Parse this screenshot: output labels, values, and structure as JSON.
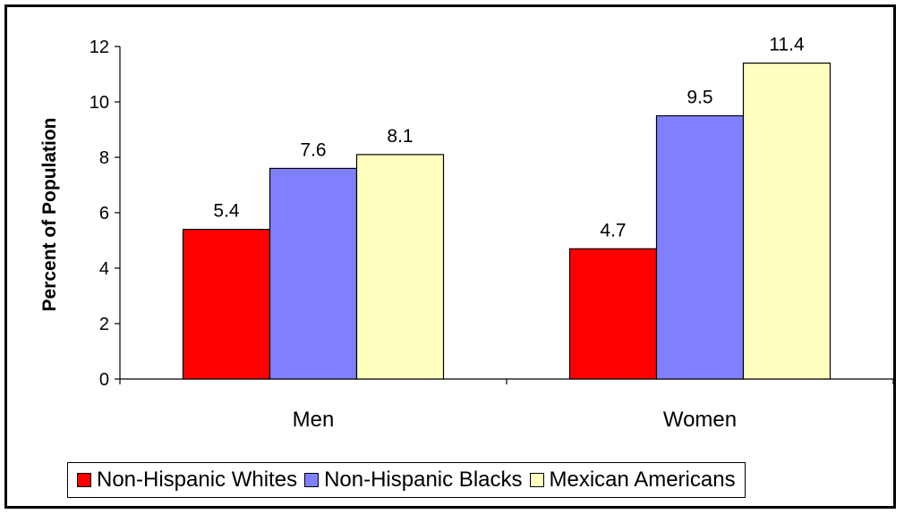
{
  "chart_data": {
    "type": "bar",
    "categories": [
      "Men",
      "Women"
    ],
    "series": [
      {
        "name": "Non-Hispanic Whites",
        "color": "#ff0000",
        "values": [
          5.4,
          4.7
        ]
      },
      {
        "name": "Non-Hispanic Blacks",
        "color": "#8080ff",
        "values": [
          7.6,
          9.5
        ]
      },
      {
        "name": "Mexican Americans",
        "color": "#ffffc0",
        "values": [
          8.1,
          11.4
        ]
      }
    ],
    "data_labels": [
      [
        "5.4",
        "4.7"
      ],
      [
        "7.6",
        "9.5"
      ],
      [
        "8.1",
        "11.4"
      ]
    ],
    "ylabel": "Percent of Population",
    "xlabel": "",
    "ylim": [
      0,
      12
    ],
    "yticks": [
      0,
      2,
      4,
      6,
      8,
      10,
      12
    ],
    "grid": false,
    "legend_position": "bottom"
  }
}
